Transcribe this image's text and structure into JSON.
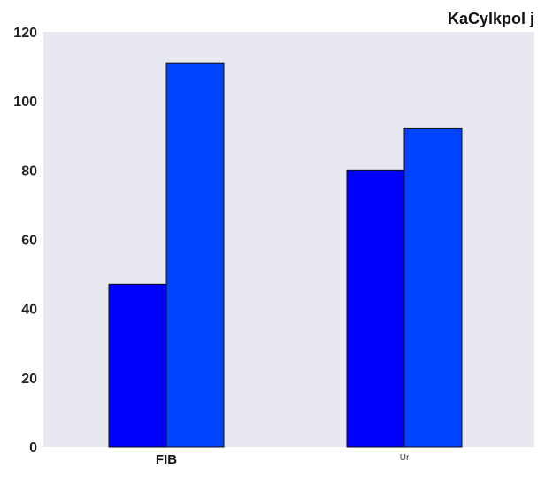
{
  "chart_data": {
    "type": "bar",
    "title": "KaCylkpol  j",
    "xlabel": "",
    "ylabel": "",
    "categories": [
      "FIB",
      "Ur"
    ],
    "series": [
      {
        "values": [
          47,
          80
        ],
        "color": "#0000ff"
      },
      {
        "values": [
          111,
          92
        ],
        "color": "#0044ff"
      }
    ],
    "ylim": [
      0,
      120
    ],
    "yticks": [
      0,
      20,
      40,
      60,
      80,
      100,
      120
    ],
    "grid": false,
    "background": "#e8e8f0"
  }
}
